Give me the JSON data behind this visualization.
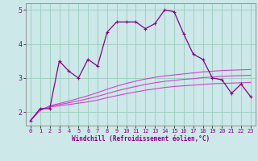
{
  "xlabel": "Windchill (Refroidissement éolien,°C)",
  "background_color": "#cce8e8",
  "grid_color": "#99ccbb",
  "line_color": "#880088",
  "line_color2": "#cc44cc",
  "xlim": [
    -0.5,
    23.5
  ],
  "ylim": [
    1.6,
    5.2
  ],
  "xticks": [
    0,
    1,
    2,
    3,
    4,
    5,
    6,
    7,
    8,
    9,
    10,
    11,
    12,
    13,
    14,
    15,
    16,
    17,
    18,
    19,
    20,
    21,
    22,
    23
  ],
  "yticks": [
    2,
    3,
    4,
    5
  ],
  "s1_x": [
    0,
    1,
    2,
    3,
    4,
    5,
    6,
    7,
    8,
    9,
    10,
    11,
    12,
    13,
    14,
    15,
    16,
    17,
    18,
    19,
    20,
    21,
    22,
    23
  ],
  "s1_y": [
    1.75,
    2.1,
    2.1,
    3.5,
    3.2,
    3.0,
    3.55,
    3.35,
    4.35,
    4.65,
    4.65,
    4.65,
    4.45,
    4.6,
    5.0,
    4.95,
    4.3,
    3.7,
    3.55,
    3.0,
    2.95,
    2.55,
    2.82,
    2.45
  ],
  "s2_x": [
    0,
    1,
    2,
    3,
    4,
    5,
    6,
    7,
    8,
    9,
    10,
    11,
    12,
    13,
    14,
    15,
    16,
    17,
    18,
    19,
    20,
    21,
    22,
    23
  ],
  "s2_y": [
    1.75,
    2.05,
    2.15,
    2.18,
    2.22,
    2.26,
    2.3,
    2.35,
    2.42,
    2.48,
    2.54,
    2.59,
    2.64,
    2.68,
    2.72,
    2.75,
    2.77,
    2.79,
    2.81,
    2.83,
    2.84,
    2.85,
    2.86,
    2.87
  ],
  "s3_x": [
    0,
    1,
    2,
    3,
    4,
    5,
    6,
    7,
    8,
    9,
    10,
    11,
    12,
    13,
    14,
    15,
    16,
    17,
    18,
    19,
    20,
    21,
    22,
    23
  ],
  "s3_y": [
    1.75,
    2.05,
    2.17,
    2.22,
    2.27,
    2.33,
    2.39,
    2.46,
    2.54,
    2.62,
    2.69,
    2.75,
    2.81,
    2.86,
    2.9,
    2.93,
    2.96,
    2.98,
    3.01,
    3.03,
    3.05,
    3.06,
    3.07,
    3.08
  ],
  "s4_x": [
    0,
    1,
    2,
    3,
    4,
    5,
    6,
    7,
    8,
    9,
    10,
    11,
    12,
    13,
    14,
    15,
    16,
    17,
    18,
    19,
    20,
    21,
    22,
    23
  ],
  "s4_y": [
    1.75,
    2.05,
    2.18,
    2.25,
    2.32,
    2.4,
    2.48,
    2.57,
    2.67,
    2.76,
    2.84,
    2.91,
    2.97,
    3.02,
    3.06,
    3.09,
    3.12,
    3.15,
    3.18,
    3.2,
    3.22,
    3.23,
    3.24,
    3.25
  ]
}
